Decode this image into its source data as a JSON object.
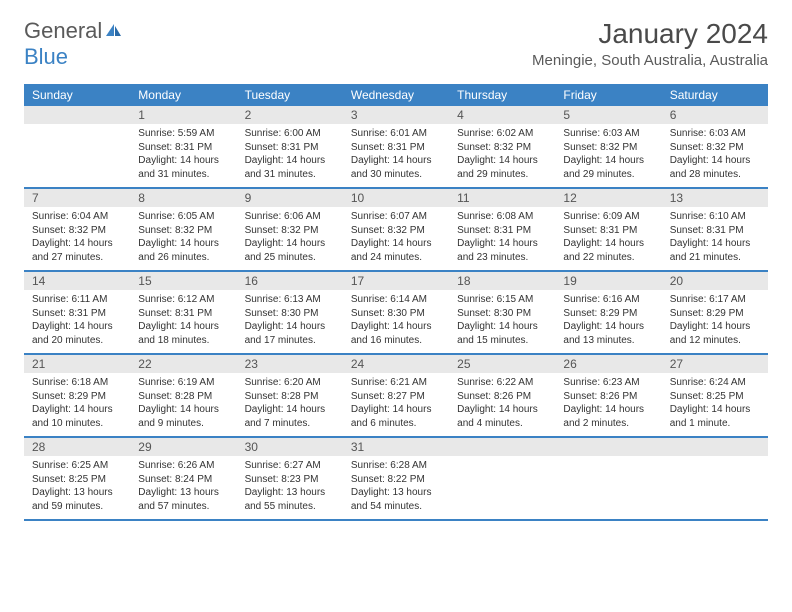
{
  "brand": {
    "part1": "General",
    "part2": "Blue"
  },
  "title": "January 2024",
  "location": "Meningie, South Australia, Australia",
  "colors": {
    "header_bg": "#3b82c4",
    "header_text": "#ffffff",
    "daynum_bg": "#e8e8e8",
    "border": "#3b82c4",
    "text": "#333333",
    "brand_gray": "#5a5a5a",
    "brand_blue": "#3b82c4"
  },
  "day_names": [
    "Sunday",
    "Monday",
    "Tuesday",
    "Wednesday",
    "Thursday",
    "Friday",
    "Saturday"
  ],
  "weeks": [
    [
      null,
      {
        "n": "1",
        "sr": "Sunrise: 5:59 AM",
        "ss": "Sunset: 8:31 PM",
        "dl": "Daylight: 14 hours and 31 minutes."
      },
      {
        "n": "2",
        "sr": "Sunrise: 6:00 AM",
        "ss": "Sunset: 8:31 PM",
        "dl": "Daylight: 14 hours and 31 minutes."
      },
      {
        "n": "3",
        "sr": "Sunrise: 6:01 AM",
        "ss": "Sunset: 8:31 PM",
        "dl": "Daylight: 14 hours and 30 minutes."
      },
      {
        "n": "4",
        "sr": "Sunrise: 6:02 AM",
        "ss": "Sunset: 8:32 PM",
        "dl": "Daylight: 14 hours and 29 minutes."
      },
      {
        "n": "5",
        "sr": "Sunrise: 6:03 AM",
        "ss": "Sunset: 8:32 PM",
        "dl": "Daylight: 14 hours and 29 minutes."
      },
      {
        "n": "6",
        "sr": "Sunrise: 6:03 AM",
        "ss": "Sunset: 8:32 PM",
        "dl": "Daylight: 14 hours and 28 minutes."
      }
    ],
    [
      {
        "n": "7",
        "sr": "Sunrise: 6:04 AM",
        "ss": "Sunset: 8:32 PM",
        "dl": "Daylight: 14 hours and 27 minutes."
      },
      {
        "n": "8",
        "sr": "Sunrise: 6:05 AM",
        "ss": "Sunset: 8:32 PM",
        "dl": "Daylight: 14 hours and 26 minutes."
      },
      {
        "n": "9",
        "sr": "Sunrise: 6:06 AM",
        "ss": "Sunset: 8:32 PM",
        "dl": "Daylight: 14 hours and 25 minutes."
      },
      {
        "n": "10",
        "sr": "Sunrise: 6:07 AM",
        "ss": "Sunset: 8:32 PM",
        "dl": "Daylight: 14 hours and 24 minutes."
      },
      {
        "n": "11",
        "sr": "Sunrise: 6:08 AM",
        "ss": "Sunset: 8:31 PM",
        "dl": "Daylight: 14 hours and 23 minutes."
      },
      {
        "n": "12",
        "sr": "Sunrise: 6:09 AM",
        "ss": "Sunset: 8:31 PM",
        "dl": "Daylight: 14 hours and 22 minutes."
      },
      {
        "n": "13",
        "sr": "Sunrise: 6:10 AM",
        "ss": "Sunset: 8:31 PM",
        "dl": "Daylight: 14 hours and 21 minutes."
      }
    ],
    [
      {
        "n": "14",
        "sr": "Sunrise: 6:11 AM",
        "ss": "Sunset: 8:31 PM",
        "dl": "Daylight: 14 hours and 20 minutes."
      },
      {
        "n": "15",
        "sr": "Sunrise: 6:12 AM",
        "ss": "Sunset: 8:31 PM",
        "dl": "Daylight: 14 hours and 18 minutes."
      },
      {
        "n": "16",
        "sr": "Sunrise: 6:13 AM",
        "ss": "Sunset: 8:30 PM",
        "dl": "Daylight: 14 hours and 17 minutes."
      },
      {
        "n": "17",
        "sr": "Sunrise: 6:14 AM",
        "ss": "Sunset: 8:30 PM",
        "dl": "Daylight: 14 hours and 16 minutes."
      },
      {
        "n": "18",
        "sr": "Sunrise: 6:15 AM",
        "ss": "Sunset: 8:30 PM",
        "dl": "Daylight: 14 hours and 15 minutes."
      },
      {
        "n": "19",
        "sr": "Sunrise: 6:16 AM",
        "ss": "Sunset: 8:29 PM",
        "dl": "Daylight: 14 hours and 13 minutes."
      },
      {
        "n": "20",
        "sr": "Sunrise: 6:17 AM",
        "ss": "Sunset: 8:29 PM",
        "dl": "Daylight: 14 hours and 12 minutes."
      }
    ],
    [
      {
        "n": "21",
        "sr": "Sunrise: 6:18 AM",
        "ss": "Sunset: 8:29 PM",
        "dl": "Daylight: 14 hours and 10 minutes."
      },
      {
        "n": "22",
        "sr": "Sunrise: 6:19 AM",
        "ss": "Sunset: 8:28 PM",
        "dl": "Daylight: 14 hours and 9 minutes."
      },
      {
        "n": "23",
        "sr": "Sunrise: 6:20 AM",
        "ss": "Sunset: 8:28 PM",
        "dl": "Daylight: 14 hours and 7 minutes."
      },
      {
        "n": "24",
        "sr": "Sunrise: 6:21 AM",
        "ss": "Sunset: 8:27 PM",
        "dl": "Daylight: 14 hours and 6 minutes."
      },
      {
        "n": "25",
        "sr": "Sunrise: 6:22 AM",
        "ss": "Sunset: 8:26 PM",
        "dl": "Daylight: 14 hours and 4 minutes."
      },
      {
        "n": "26",
        "sr": "Sunrise: 6:23 AM",
        "ss": "Sunset: 8:26 PM",
        "dl": "Daylight: 14 hours and 2 minutes."
      },
      {
        "n": "27",
        "sr": "Sunrise: 6:24 AM",
        "ss": "Sunset: 8:25 PM",
        "dl": "Daylight: 14 hours and 1 minute."
      }
    ],
    [
      {
        "n": "28",
        "sr": "Sunrise: 6:25 AM",
        "ss": "Sunset: 8:25 PM",
        "dl": "Daylight: 13 hours and 59 minutes."
      },
      {
        "n": "29",
        "sr": "Sunrise: 6:26 AM",
        "ss": "Sunset: 8:24 PM",
        "dl": "Daylight: 13 hours and 57 minutes."
      },
      {
        "n": "30",
        "sr": "Sunrise: 6:27 AM",
        "ss": "Sunset: 8:23 PM",
        "dl": "Daylight: 13 hours and 55 minutes."
      },
      {
        "n": "31",
        "sr": "Sunrise: 6:28 AM",
        "ss": "Sunset: 8:22 PM",
        "dl": "Daylight: 13 hours and 54 minutes."
      },
      null,
      null,
      null
    ]
  ]
}
